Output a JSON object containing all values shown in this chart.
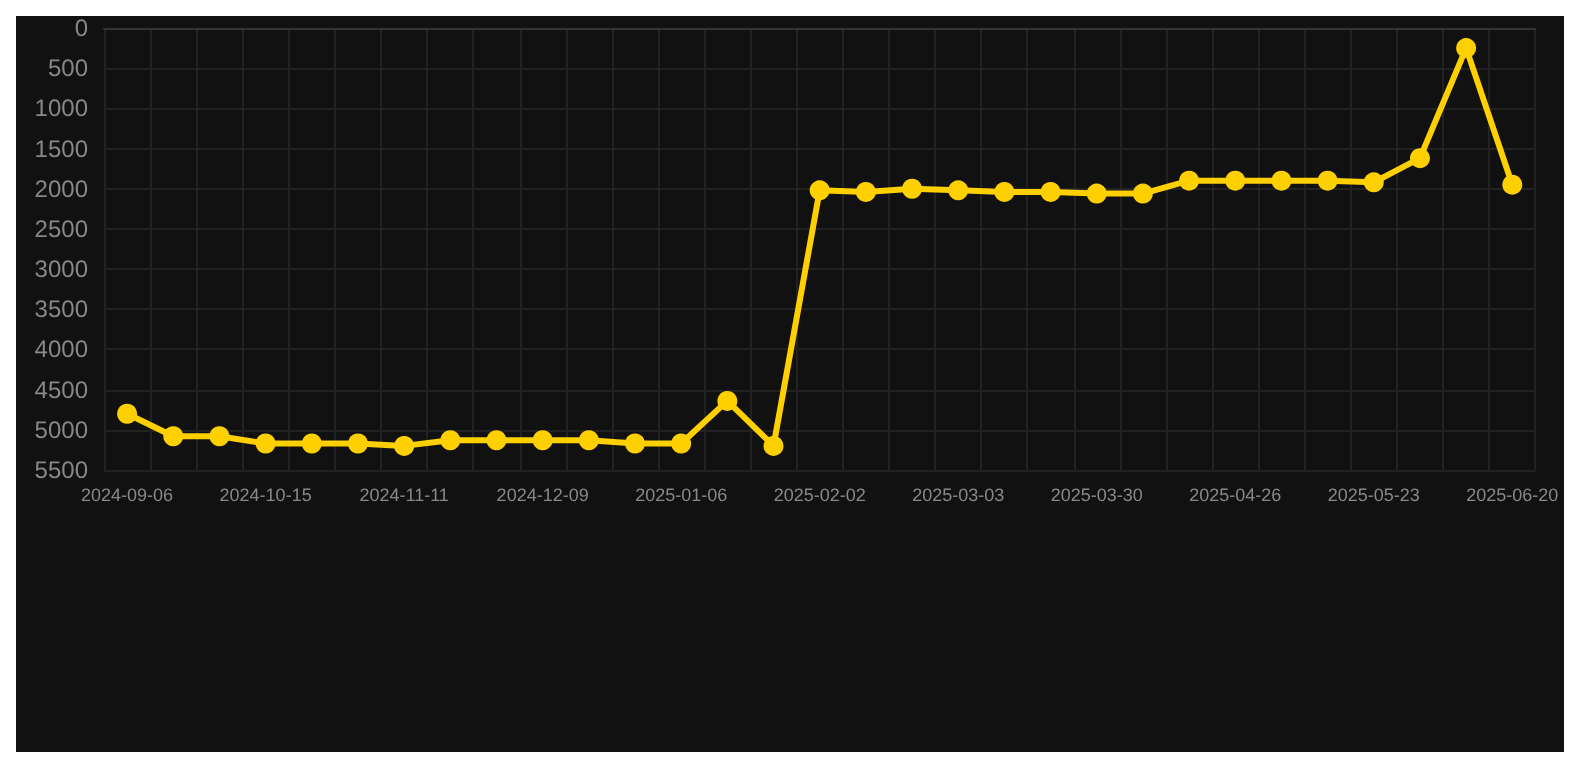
{
  "chart_data": {
    "type": "line",
    "categories": [
      "2024-09-06",
      null,
      null,
      "2024-10-15",
      null,
      null,
      "2024-11-11",
      null,
      null,
      "2024-12-09",
      null,
      null,
      "2025-01-06",
      null,
      null,
      "2025-02-02",
      null,
      null,
      "2025-03-03",
      null,
      null,
      "2025-03-30",
      null,
      null,
      "2025-04-26",
      null,
      null,
      "2025-05-23",
      null,
      null,
      "2025-06-20"
    ],
    "series": [
      {
        "color": "#ffd000",
        "values": [
          4800,
          5080,
          5080,
          5170,
          5170,
          5170,
          5200,
          5130,
          5130,
          5130,
          5130,
          5170,
          5170,
          4640,
          5200,
          2020,
          2040,
          2000,
          2020,
          2040,
          2040,
          2060,
          2060,
          1900,
          1900,
          1900,
          1900,
          1920,
          1620,
          250,
          1950
        ]
      }
    ],
    "ylim": [
      5500,
      0
    ],
    "yticks": [
      0,
      500,
      1000,
      1500,
      2000,
      2500,
      3000,
      3500,
      4000,
      4500,
      5000,
      5500
    ],
    "grid": true,
    "marker": "circle",
    "line_style": "solid"
  }
}
